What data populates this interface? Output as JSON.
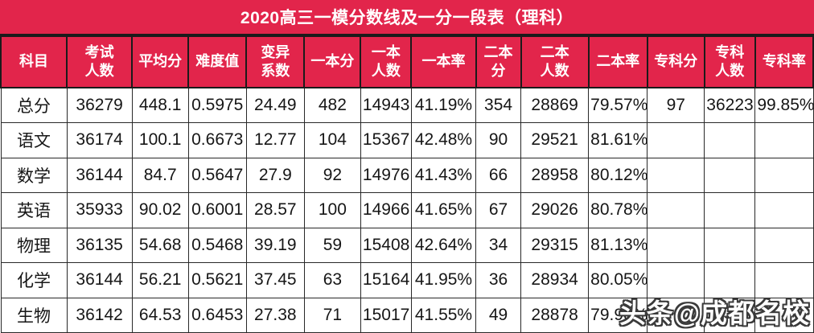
{
  "chart_data": {
    "type": "table",
    "title": "2020高三一模分数线及一分一段表（理科）",
    "columns": [
      "科目",
      "考试\n人数",
      "平均分",
      "难度值",
      "变异\n系数",
      "一本分",
      "一本\n人数",
      "一本率",
      "二本分",
      "二本\n人数",
      "二本率",
      "专科分",
      "专科\n人数",
      "专科率"
    ],
    "rows": [
      [
        "总分",
        "36279",
        "448.1",
        "0.5975",
        "24.49",
        "482",
        "14943",
        "41.19%",
        "354",
        "28869",
        "79.57%",
        "97",
        "36223",
        "99.85%"
      ],
      [
        "语文",
        "36174",
        "100.1",
        "0.6673",
        "12.77",
        "104",
        "15367",
        "42.48%",
        "90",
        "29521",
        "81.61%",
        "",
        "",
        ""
      ],
      [
        "数学",
        "36144",
        "84.7",
        "0.5647",
        "27.9",
        "92",
        "14976",
        "41.43%",
        "66",
        "28958",
        "80.12%",
        "",
        "",
        ""
      ],
      [
        "英语",
        "35933",
        "90.02",
        "0.6001",
        "28.57",
        "100",
        "14966",
        "41.65%",
        "67",
        "29026",
        "80.78%",
        "",
        "",
        ""
      ],
      [
        "物理",
        "36135",
        "54.68",
        "0.5468",
        "39.19",
        "59",
        "15408",
        "42.64%",
        "34",
        "29315",
        "81.13%",
        "",
        "",
        ""
      ],
      [
        "化学",
        "36144",
        "56.21",
        "0.5621",
        "37.45",
        "63",
        "15164",
        "41.95%",
        "36",
        "28934",
        "80.05%",
        "",
        "",
        ""
      ],
      [
        "生物",
        "36142",
        "64.53",
        "0.6453",
        "27.38",
        "71",
        "15017",
        "41.55%",
        "49",
        "28878",
        "79.90%",
        "",
        "",
        ""
      ]
    ],
    "layout": {
      "header_position": "top",
      "grid": true
    }
  },
  "watermark": "头条@成都名校",
  "colors": {
    "accent_red": "#e2254b",
    "header_text": "#ffffff",
    "body_text": "#161616",
    "grid_line": "#1b1b1b",
    "background": "#ffffff"
  }
}
